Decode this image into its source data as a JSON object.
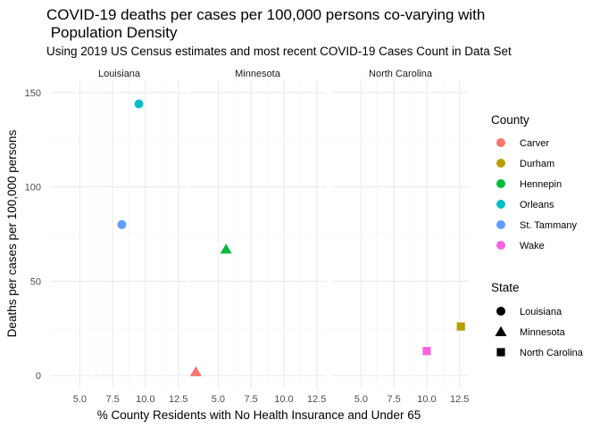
{
  "chart_data": {
    "type": "scatter",
    "title_lines": [
      "COVID-19 deaths per cases per 100,000 persons co-varying with",
      " Population Density"
    ],
    "subtitle": "Using 2019 US Census estimates and most recent COVID-19 Cases Count in Data Set",
    "xlabel": "% County Residents with No Health Insurance and Under 65",
    "ylabel": "Deaths per cases per 100,000 persons",
    "xlim": [
      2.8,
      13.2
    ],
    "ylim": [
      -7,
      157
    ],
    "x_ticks": [
      5,
      7.5,
      10,
      12.5
    ],
    "x_tick_labels": [
      "5.0",
      "7.5",
      "10.0",
      "12.5"
    ],
    "y_ticks": [
      0,
      50,
      100,
      150
    ],
    "y_tick_labels": [
      "0",
      "50",
      "100",
      "150"
    ],
    "grid": true,
    "facets": [
      "Louisiana",
      "Minnesota",
      "North Carolina"
    ],
    "color_legend": {
      "title": "County",
      "entries": [
        {
          "label": "Carver",
          "color": "#F8766D"
        },
        {
          "label": "Durham",
          "color": "#B79F00"
        },
        {
          "label": "Hennepin",
          "color": "#00BA38"
        },
        {
          "label": "Orleans",
          "color": "#00BFC4"
        },
        {
          "label": "St. Tammany",
          "color": "#619CFF"
        },
        {
          "label": "Wake",
          "color": "#F564E3"
        }
      ]
    },
    "shape_legend": {
      "title": "State",
      "entries": [
        {
          "label": "Louisiana",
          "shape": "circle"
        },
        {
          "label": "Minnesota",
          "shape": "triangle"
        },
        {
          "label": "North Carolina",
          "shape": "square"
        }
      ]
    },
    "legend_position": "right",
    "points": [
      {
        "facet": "Louisiana",
        "county": "Orleans",
        "state": "Louisiana",
        "x": 9.5,
        "y": 144
      },
      {
        "facet": "Louisiana",
        "county": "St. Tammany",
        "state": "Louisiana",
        "x": 8.2,
        "y": 80
      },
      {
        "facet": "Minnesota",
        "county": "Hennepin",
        "state": "Minnesota",
        "x": 5.6,
        "y": 67
      },
      {
        "facet": "Minnesota",
        "county": "Carver",
        "state": "Minnesota",
        "x": 3.3,
        "y": 2
      },
      {
        "facet": "North Carolina",
        "county": "Durham",
        "state": "North Carolina",
        "x": 12.6,
        "y": 26
      },
      {
        "facet": "North Carolina",
        "county": "Wake",
        "state": "North Carolina",
        "x": 10.0,
        "y": 13
      }
    ]
  }
}
